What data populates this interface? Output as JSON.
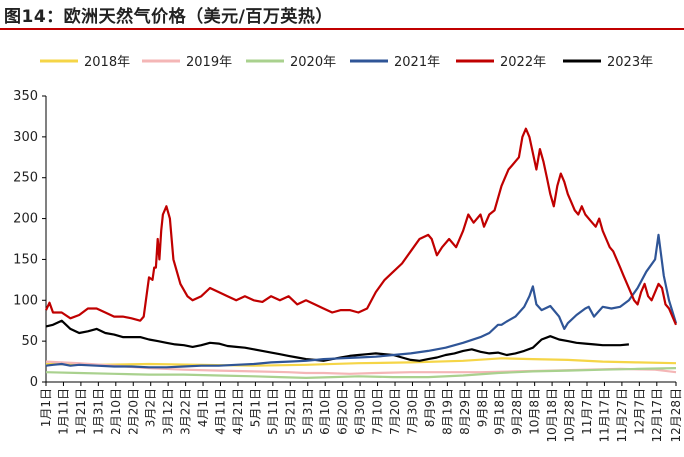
{
  "figure": {
    "title": "图14：欧洲天然气价格（美元/百万英热）"
  },
  "chart_data": {
    "type": "line",
    "title": "",
    "xlabel": "",
    "ylabel": "",
    "ylim": [
      0,
      350
    ],
    "yticks": [
      0,
      50,
      100,
      150,
      200,
      250,
      300,
      350
    ],
    "grid": false,
    "legend_position": "top",
    "xticks": [
      "1月1日",
      "1月11日",
      "1月21日",
      "1月31日",
      "2月10日",
      "2月20日",
      "3月2日",
      "3月12日",
      "3月22日",
      "4月1日",
      "4月11日",
      "4月21日",
      "5月1日",
      "5月11日",
      "5月21日",
      "5月31日",
      "6月10日",
      "6月20日",
      "6月30日",
      "7月10日",
      "7月20日",
      "7月30日",
      "8月9日",
      "8月19日",
      "8月29日",
      "9月8日",
      "9月18日",
      "9月28日",
      "10月8日",
      "10月18日",
      "10月28日",
      "11月7日",
      "11月17日",
      "11月27日",
      "12月7日",
      "12月17日",
      "12月28日"
    ],
    "x_note": "day of year (1 = 1月1日, 362 = 12月28日)",
    "series": [
      {
        "name": "2018年",
        "color": "#f5d547",
        "points": [
          [
            1,
            22
          ],
          [
            30,
            21
          ],
          [
            60,
            22
          ],
          [
            90,
            21
          ],
          [
            120,
            20
          ],
          [
            150,
            21
          ],
          [
            180,
            23
          ],
          [
            210,
            24
          ],
          [
            240,
            26
          ],
          [
            262,
            29
          ],
          [
            280,
            28
          ],
          [
            300,
            27
          ],
          [
            320,
            25
          ],
          [
            340,
            24
          ],
          [
            362,
            23
          ]
        ]
      },
      {
        "name": "2019年",
        "color": "#f4b6b6",
        "points": [
          [
            1,
            25
          ],
          [
            20,
            23
          ],
          [
            40,
            20
          ],
          [
            60,
            17
          ],
          [
            80,
            15
          ],
          [
            100,
            14
          ],
          [
            120,
            13
          ],
          [
            140,
            12
          ],
          [
            150,
            11
          ],
          [
            160,
            11
          ],
          [
            175,
            10
          ],
          [
            190,
            11
          ],
          [
            210,
            12
          ],
          [
            230,
            12
          ],
          [
            250,
            12
          ],
          [
            270,
            13
          ],
          [
            290,
            14
          ],
          [
            310,
            15
          ],
          [
            330,
            16
          ],
          [
            350,
            15
          ],
          [
            362,
            12
          ]
        ]
      },
      {
        "name": "2020年",
        "color": "#a9d18e",
        "points": [
          [
            1,
            12
          ],
          [
            20,
            11
          ],
          [
            40,
            10
          ],
          [
            60,
            9
          ],
          [
            80,
            9
          ],
          [
            100,
            8
          ],
          [
            120,
            7
          ],
          [
            135,
            6
          ],
          [
            150,
            5
          ],
          [
            165,
            6
          ],
          [
            180,
            7
          ],
          [
            200,
            6
          ],
          [
            220,
            6
          ],
          [
            240,
            8
          ],
          [
            260,
            11
          ],
          [
            280,
            13
          ],
          [
            300,
            14
          ],
          [
            320,
            15
          ],
          [
            340,
            16
          ],
          [
            362,
            17
          ]
        ]
      },
      {
        "name": "2021年",
        "color": "#2f5597",
        "points": [
          [
            1,
            20
          ],
          [
            5,
            21
          ],
          [
            10,
            22
          ],
          [
            15,
            20
          ],
          [
            20,
            21
          ],
          [
            30,
            20
          ],
          [
            40,
            19
          ],
          [
            50,
            19
          ],
          [
            60,
            18
          ],
          [
            70,
            18
          ],
          [
            80,
            19
          ],
          [
            90,
            20
          ],
          [
            100,
            20
          ],
          [
            110,
            21
          ],
          [
            120,
            22
          ],
          [
            130,
            24
          ],
          [
            140,
            25
          ],
          [
            150,
            26
          ],
          [
            160,
            28
          ],
          [
            170,
            29
          ],
          [
            180,
            30
          ],
          [
            190,
            31
          ],
          [
            200,
            33
          ],
          [
            210,
            35
          ],
          [
            220,
            38
          ],
          [
            230,
            42
          ],
          [
            240,
            48
          ],
          [
            250,
            55
          ],
          [
            255,
            60
          ],
          [
            260,
            70
          ],
          [
            262,
            70
          ],
          [
            265,
            74
          ],
          [
            270,
            80
          ],
          [
            275,
            92
          ],
          [
            278,
            105
          ],
          [
            280,
            117
          ],
          [
            282,
            95
          ],
          [
            285,
            88
          ],
          [
            290,
            93
          ],
          [
            295,
            80
          ],
          [
            298,
            65
          ],
          [
            300,
            72
          ],
          [
            305,
            82
          ],
          [
            310,
            90
          ],
          [
            312,
            92
          ],
          [
            315,
            80
          ],
          [
            320,
            92
          ],
          [
            325,
            90
          ],
          [
            330,
            92
          ],
          [
            335,
            100
          ],
          [
            340,
            115
          ],
          [
            345,
            135
          ],
          [
            350,
            150
          ],
          [
            352,
            180
          ],
          [
            355,
            130
          ],
          [
            358,
            100
          ],
          [
            362,
            72
          ]
        ]
      },
      {
        "name": "2022年",
        "color": "#c00000",
        "points": [
          [
            1,
            88
          ],
          [
            3,
            97
          ],
          [
            5,
            85
          ],
          [
            10,
            85
          ],
          [
            15,
            78
          ],
          [
            20,
            82
          ],
          [
            25,
            90
          ],
          [
            30,
            90
          ],
          [
            35,
            85
          ],
          [
            40,
            80
          ],
          [
            45,
            80
          ],
          [
            50,
            78
          ],
          [
            55,
            75
          ],
          [
            57,
            80
          ],
          [
            60,
            128
          ],
          [
            62,
            125
          ],
          [
            63,
            140
          ],
          [
            64,
            140
          ],
          [
            65,
            175
          ],
          [
            66,
            150
          ],
          [
            67,
            185
          ],
          [
            68,
            205
          ],
          [
            70,
            215
          ],
          [
            72,
            200
          ],
          [
            74,
            150
          ],
          [
            78,
            120
          ],
          [
            82,
            105
          ],
          [
            85,
            100
          ],
          [
            90,
            105
          ],
          [
            95,
            115
          ],
          [
            100,
            110
          ],
          [
            105,
            105
          ],
          [
            110,
            100
          ],
          [
            115,
            105
          ],
          [
            120,
            100
          ],
          [
            125,
            98
          ],
          [
            130,
            105
          ],
          [
            135,
            100
          ],
          [
            140,
            105
          ],
          [
            145,
            95
          ],
          [
            150,
            100
          ],
          [
            155,
            95
          ],
          [
            160,
            90
          ],
          [
            165,
            85
          ],
          [
            170,
            88
          ],
          [
            175,
            88
          ],
          [
            180,
            85
          ],
          [
            185,
            90
          ],
          [
            190,
            110
          ],
          [
            195,
            125
          ],
          [
            200,
            135
          ],
          [
            205,
            145
          ],
          [
            210,
            160
          ],
          [
            215,
            175
          ],
          [
            220,
            180
          ],
          [
            222,
            175
          ],
          [
            225,
            155
          ],
          [
            228,
            165
          ],
          [
            232,
            175
          ],
          [
            236,
            165
          ],
          [
            240,
            185
          ],
          [
            243,
            205
          ],
          [
            246,
            195
          ],
          [
            250,
            205
          ],
          [
            252,
            190
          ],
          [
            255,
            205
          ],
          [
            258,
            210
          ],
          [
            262,
            240
          ],
          [
            264,
            250
          ],
          [
            266,
            260
          ],
          [
            268,
            265
          ],
          [
            270,
            270
          ],
          [
            272,
            275
          ],
          [
            274,
            300
          ],
          [
            276,
            310
          ],
          [
            278,
            300
          ],
          [
            280,
            280
          ],
          [
            282,
            260
          ],
          [
            284,
            285
          ],
          [
            286,
            270
          ],
          [
            288,
            250
          ],
          [
            290,
            230
          ],
          [
            292,
            215
          ],
          [
            294,
            240
          ],
          [
            296,
            255
          ],
          [
            298,
            245
          ],
          [
            300,
            230
          ],
          [
            302,
            220
          ],
          [
            304,
            210
          ],
          [
            306,
            205
          ],
          [
            308,
            215
          ],
          [
            310,
            205
          ],
          [
            312,
            200
          ],
          [
            314,
            195
          ],
          [
            316,
            190
          ],
          [
            318,
            200
          ],
          [
            320,
            185
          ],
          [
            322,
            175
          ],
          [
            324,
            165
          ],
          [
            326,
            160
          ],
          [
            328,
            150
          ],
          [
            330,
            140
          ],
          [
            332,
            130
          ],
          [
            334,
            120
          ],
          [
            336,
            110
          ],
          [
            338,
            100
          ],
          [
            340,
            95
          ],
          [
            342,
            110
          ],
          [
            344,
            120
          ],
          [
            346,
            105
          ],
          [
            348,
            100
          ],
          [
            350,
            110
          ],
          [
            352,
            120
          ],
          [
            354,
            115
          ],
          [
            356,
            95
          ],
          [
            358,
            90
          ],
          [
            362,
            70
          ]
        ]
      },
      {
        "name": "2023年",
        "color": "#000000",
        "points": [
          [
            1,
            68
          ],
          [
            5,
            70
          ],
          [
            10,
            75
          ],
          [
            15,
            65
          ],
          [
            20,
            60
          ],
          [
            25,
            62
          ],
          [
            30,
            65
          ],
          [
            35,
            60
          ],
          [
            40,
            58
          ],
          [
            45,
            55
          ],
          [
            50,
            55
          ],
          [
            55,
            55
          ],
          [
            60,
            52
          ],
          [
            65,
            50
          ],
          [
            70,
            48
          ],
          [
            75,
            46
          ],
          [
            80,
            45
          ],
          [
            85,
            43
          ],
          [
            90,
            45
          ],
          [
            95,
            48
          ],
          [
            100,
            47
          ],
          [
            105,
            44
          ],
          [
            110,
            43
          ],
          [
            115,
            42
          ],
          [
            120,
            40
          ],
          [
            125,
            38
          ],
          [
            130,
            36
          ],
          [
            135,
            34
          ],
          [
            140,
            32
          ],
          [
            145,
            30
          ],
          [
            150,
            28
          ],
          [
            155,
            27
          ],
          [
            160,
            26
          ],
          [
            165,
            28
          ],
          [
            170,
            30
          ],
          [
            175,
            32
          ],
          [
            180,
            33
          ],
          [
            185,
            34
          ],
          [
            190,
            35
          ],
          [
            195,
            34
          ],
          [
            200,
            33
          ],
          [
            205,
            30
          ],
          [
            210,
            27
          ],
          [
            215,
            26
          ],
          [
            220,
            28
          ],
          [
            225,
            30
          ],
          [
            230,
            33
          ],
          [
            235,
            35
          ],
          [
            240,
            38
          ],
          [
            245,
            40
          ],
          [
            250,
            37
          ],
          [
            255,
            35
          ],
          [
            260,
            36
          ],
          [
            265,
            33
          ],
          [
            270,
            35
          ],
          [
            275,
            38
          ],
          [
            280,
            42
          ],
          [
            285,
            52
          ],
          [
            290,
            56
          ],
          [
            295,
            52
          ],
          [
            300,
            50
          ],
          [
            305,
            48
          ],
          [
            310,
            47
          ],
          [
            315,
            46
          ],
          [
            320,
            45
          ],
          [
            325,
            45
          ],
          [
            330,
            45
          ],
          [
            335,
            46
          ]
        ]
      }
    ]
  }
}
